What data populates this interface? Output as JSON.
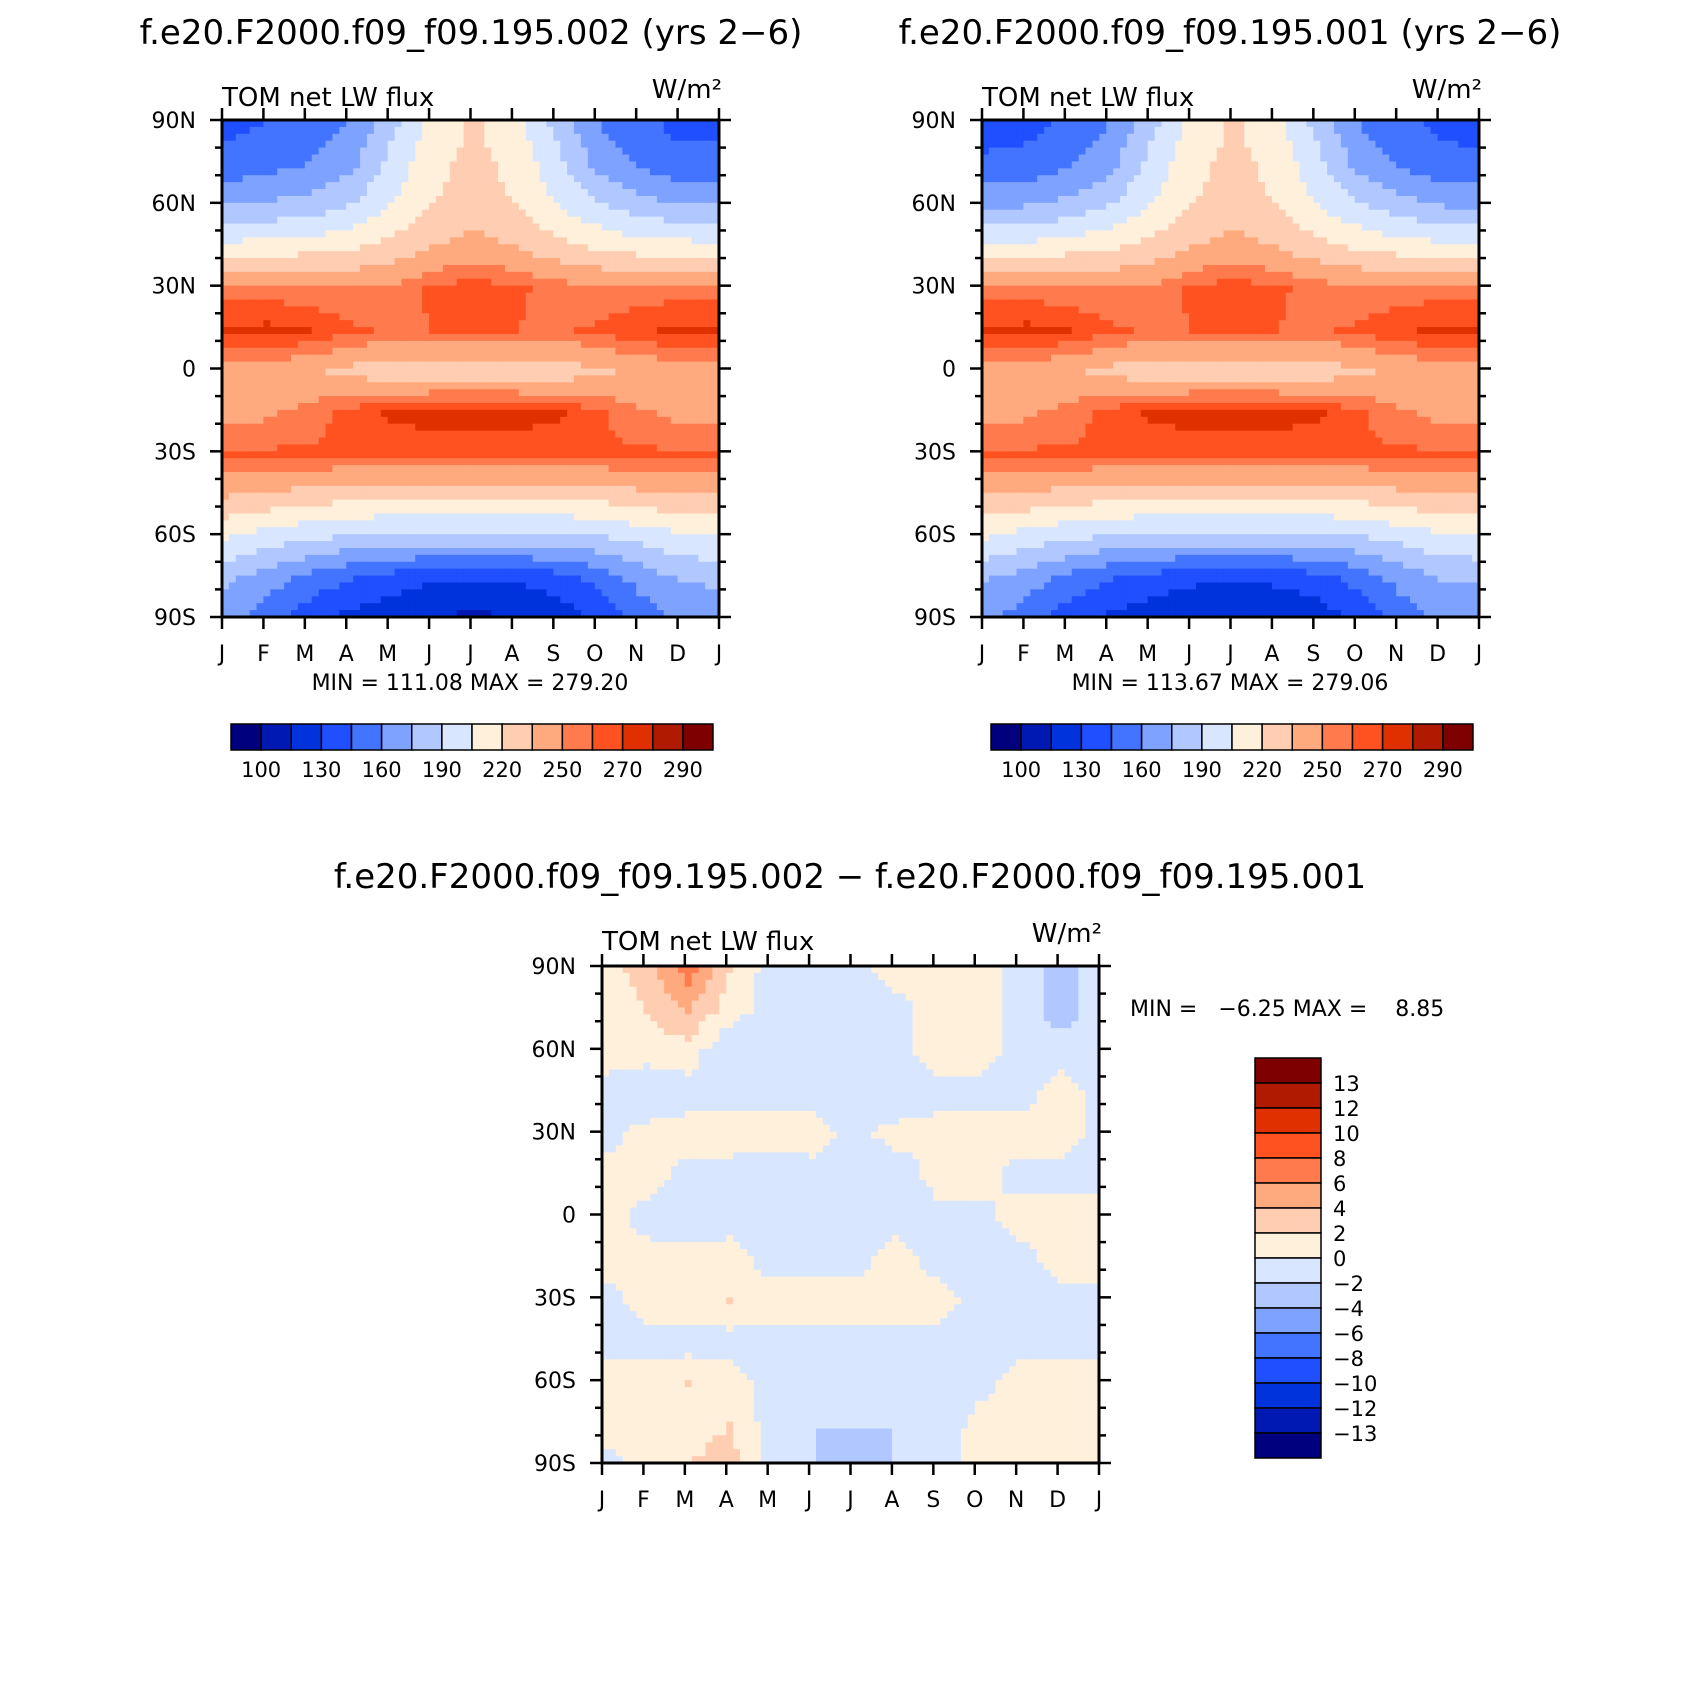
{
  "chart_data": [
    {
      "type": "heatmap",
      "title": "f.e20.F2000.f09_f09.195.002 (yrs 2−6)",
      "left_label": "TOM net LW flux",
      "units": "W/m²",
      "x_ticks": [
        "J",
        "F",
        "M",
        "A",
        "M",
        "J",
        "J",
        "A",
        "S",
        "O",
        "N",
        "D",
        "J"
      ],
      "y_ticks": [
        "90N",
        "60N",
        "30N",
        "0",
        "30S",
        "60S",
        "90S"
      ],
      "ylim": [
        -90,
        90
      ],
      "stats_text": "MIN = 111.08 MAX = 279.20",
      "min": 111.08,
      "max": 279.2,
      "colorbar": {
        "orientation": "horizontal",
        "colors": [
          "#00007f",
          "#0019b2",
          "#0033db",
          "#1f4fff",
          "#4274ff",
          "#7ea2ff",
          "#b0c8ff",
          "#d8e7ff",
          "#fff0dc",
          "#ffcdb2",
          "#ffa97f",
          "#ff7a4d",
          "#ff5220",
          "#e03000",
          "#b01a00",
          "#7f0000"
        ],
        "labels": [
          "100",
          "130",
          "160",
          "190",
          "220",
          "250",
          "270",
          "290"
        ]
      },
      "field": {
        "columns": [
          "J",
          "F",
          "M",
          "A",
          "M",
          "J",
          "J",
          "A",
          "S",
          "O",
          "N",
          "D",
          "J"
        ],
        "rows_lat": [
          "90N",
          "75N",
          "60N",
          "45N",
          "30N",
          "15N",
          "0",
          "15S",
          "30S",
          "45S",
          "60S",
          "75S",
          "90S"
        ],
        "values": [
          [
            140,
            145,
            150,
            160,
            185,
            210,
            222,
            210,
            185,
            160,
            150,
            140,
            140
          ],
          [
            150,
            155,
            160,
            170,
            195,
            215,
            225,
            215,
            195,
            170,
            158,
            150,
            150
          ],
          [
            175,
            178,
            180,
            190,
            205,
            220,
            228,
            220,
            205,
            192,
            182,
            176,
            175
          ],
          [
            210,
            212,
            214,
            218,
            225,
            235,
            240,
            235,
            225,
            218,
            213,
            211,
            210
          ],
          [
            255,
            255,
            252,
            250,
            252,
            262,
            266,
            262,
            256,
            252,
            254,
            255,
            255
          ],
          [
            272,
            273,
            270,
            262,
            258,
            260,
            262,
            260,
            258,
            262,
            268,
            272,
            272
          ],
          [
            245,
            242,
            238,
            230,
            226,
            225,
            224,
            225,
            226,
            232,
            238,
            244,
            245
          ],
          [
            245,
            248,
            254,
            264,
            272,
            275,
            276,
            275,
            272,
            262,
            252,
            246,
            245
          ],
          [
            262,
            262,
            262,
            262,
            262,
            262,
            262,
            262,
            262,
            262,
            262,
            262,
            262
          ],
          [
            235,
            232,
            228,
            225,
            222,
            222,
            222,
            222,
            222,
            225,
            230,
            234,
            235
          ],
          [
            205,
            198,
            192,
            188,
            185,
            185,
            185,
            185,
            185,
            188,
            194,
            202,
            205
          ],
          [
            178,
            168,
            155,
            145,
            138,
            132,
            130,
            132,
            138,
            150,
            165,
            176,
            178
          ],
          [
            165,
            150,
            135,
            125,
            118,
            113,
            111,
            113,
            118,
            132,
            150,
            163,
            165
          ]
        ]
      }
    },
    {
      "type": "heatmap",
      "title": "f.e20.F2000.f09_f09.195.001 (yrs 2−6)",
      "left_label": "TOM net LW flux",
      "units": "W/m²",
      "x_ticks": [
        "J",
        "F",
        "M",
        "A",
        "M",
        "J",
        "J",
        "A",
        "S",
        "O",
        "N",
        "D",
        "J"
      ],
      "y_ticks": [
        "90N",
        "60N",
        "30N",
        "0",
        "30S",
        "60S",
        "90S"
      ],
      "ylim": [
        -90,
        90
      ],
      "stats_text": "MIN = 113.67 MAX = 279.06",
      "min": 113.67,
      "max": 279.06,
      "colorbar": {
        "orientation": "horizontal",
        "colors": [
          "#00007f",
          "#0019b2",
          "#0033db",
          "#1f4fff",
          "#4274ff",
          "#7ea2ff",
          "#b0c8ff",
          "#d8e7ff",
          "#fff0dc",
          "#ffcdb2",
          "#ffa97f",
          "#ff7a4d",
          "#ff5220",
          "#e03000",
          "#b01a00",
          "#7f0000"
        ],
        "labels": [
          "100",
          "130",
          "160",
          "190",
          "220",
          "250",
          "270",
          "290"
        ]
      },
      "field": {
        "columns": [
          "J",
          "F",
          "M",
          "A",
          "M",
          "J",
          "J",
          "A",
          "S",
          "O",
          "N",
          "D",
          "J"
        ],
        "rows_lat": [
          "90N",
          "75N",
          "60N",
          "45N",
          "30N",
          "15N",
          "0",
          "15S",
          "30S",
          "45S",
          "60S",
          "75S",
          "90S"
        ],
        "values": [
          [
            138,
            140,
            148,
            160,
            185,
            210,
            222,
            210,
            185,
            160,
            150,
            142,
            138
          ],
          [
            148,
            150,
            158,
            170,
            195,
            215,
            225,
            215,
            195,
            170,
            158,
            150,
            148
          ],
          [
            172,
            175,
            180,
            190,
            205,
            220,
            228,
            220,
            205,
            192,
            182,
            175,
            172
          ],
          [
            208,
            210,
            214,
            218,
            225,
            235,
            240,
            235,
            225,
            218,
            213,
            210,
            208
          ],
          [
            255,
            255,
            252,
            250,
            252,
            262,
            266,
            262,
            256,
            252,
            254,
            255,
            255
          ],
          [
            272,
            273,
            270,
            262,
            258,
            260,
            262,
            260,
            258,
            262,
            268,
            272,
            272
          ],
          [
            244,
            242,
            238,
            230,
            226,
            225,
            224,
            225,
            226,
            232,
            238,
            244,
            244
          ],
          [
            245,
            248,
            254,
            264,
            272,
            275,
            276,
            275,
            272,
            262,
            252,
            246,
            245
          ],
          [
            262,
            262,
            262,
            262,
            262,
            262,
            262,
            262,
            262,
            262,
            262,
            262,
            262
          ],
          [
            234,
            232,
            228,
            225,
            222,
            222,
            222,
            222,
            222,
            225,
            230,
            234,
            234
          ],
          [
            205,
            198,
            192,
            188,
            185,
            185,
            185,
            185,
            185,
            188,
            194,
            202,
            205
          ],
          [
            176,
            168,
            155,
            145,
            138,
            133,
            132,
            133,
            138,
            150,
            165,
            175,
            176
          ],
          [
            165,
            150,
            135,
            126,
            120,
            115,
            114,
            115,
            120,
            132,
            150,
            163,
            165
          ]
        ]
      }
    },
    {
      "type": "heatmap",
      "title": "f.e20.F2000.f09_f09.195.002 − f.e20.F2000.f09_f09.195.001",
      "left_label": "TOM net LW flux",
      "units": "W/m²",
      "x_ticks": [
        "J",
        "F",
        "M",
        "A",
        "M",
        "J",
        "J",
        "A",
        "S",
        "O",
        "N",
        "D",
        "J"
      ],
      "y_ticks": [
        "90N",
        "60N",
        "30N",
        "0",
        "30S",
        "60S",
        "90S"
      ],
      "ylim": [
        -90,
        90
      ],
      "stats_text": "MIN =   −6.25 MAX =    8.85",
      "min": -6.25,
      "max": 8.85,
      "colorbar": {
        "orientation": "vertical",
        "colors": [
          "#00007f",
          "#0019b2",
          "#0033db",
          "#1f4fff",
          "#4274ff",
          "#7ea2ff",
          "#b0c8ff",
          "#d8e7ff",
          "#fff0dc",
          "#ffcdb2",
          "#ffa97f",
          "#ff7a4d",
          "#ff5220",
          "#e03000",
          "#b01a00",
          "#7f0000"
        ],
        "labels": [
          "13",
          "12",
          "10",
          "8",
          "6",
          "4",
          "2",
          "0",
          "−2",
          "−4",
          "−6",
          "−8",
          "−10",
          "−12",
          "−13"
        ]
      },
      "field": {
        "columns": [
          "J",
          "F",
          "M",
          "A",
          "M",
          "J",
          "J",
          "A",
          "S",
          "O",
          "N",
          "D",
          "J"
        ],
        "rows_lat": [
          "90N",
          "75N",
          "60N",
          "45N",
          "30N",
          "15N",
          "0",
          "15S",
          "30S",
          "45S",
          "60S",
          "75S",
          "90S"
        ],
        "values": [
          [
            1,
            3,
            7,
            2,
            -1,
            -1,
            -1,
            1,
            1,
            1,
            -1,
            -3,
            -1
          ],
          [
            1,
            2,
            4,
            1,
            -1,
            -1,
            -1,
            -1,
            1,
            1,
            -1,
            -3,
            -1
          ],
          [
            1,
            1,
            1,
            -2,
            -1,
            -2,
            -1,
            -1,
            1,
            1,
            -1,
            -1,
            -1
          ],
          [
            -1,
            -2,
            -1,
            -1,
            -1,
            -1,
            -1,
            -2,
            -1,
            -1,
            -1,
            1,
            -1
          ],
          [
            -1,
            1,
            1,
            1,
            1,
            1,
            -1,
            1,
            1,
            1,
            1,
            1,
            -1
          ],
          [
            1,
            1,
            -1,
            -1,
            -2,
            -1,
            -1,
            -2,
            1,
            1,
            -1,
            -1,
            -1
          ],
          [
            1,
            -1,
            -2,
            -1,
            -1,
            -1,
            -2,
            -1,
            -1,
            -1,
            1,
            1,
            2
          ],
          [
            1,
            1,
            1,
            1,
            -1,
            -1,
            -1,
            1,
            -1,
            -1,
            -1,
            1,
            1
          ],
          [
            -1,
            1,
            1,
            2,
            1,
            1,
            1,
            1,
            1,
            -1,
            -1,
            -1,
            -1
          ],
          [
            -1,
            -1,
            -1,
            -1,
            -1,
            -1,
            -1,
            -1,
            -1,
            -1,
            -1,
            -1,
            -1
          ],
          [
            1,
            1,
            2,
            1,
            -1,
            -1,
            -1,
            -2,
            -2,
            -1,
            1,
            1,
            1
          ],
          [
            1,
            1,
            1,
            2,
            -1,
            -2,
            -2,
            -2,
            -2,
            1,
            1,
            1,
            1
          ],
          [
            -1,
            1,
            2,
            3,
            -1,
            -2,
            -3,
            -2,
            -1,
            1,
            1,
            1,
            1
          ]
        ]
      }
    }
  ]
}
